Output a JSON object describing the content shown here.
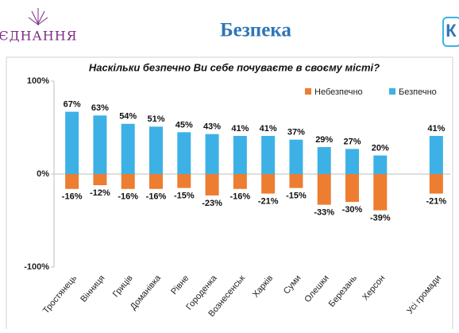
{
  "header": {
    "logo": "ЄДНАННЯ",
    "title": "Безпека",
    "right_logo": "К"
  },
  "chart_data": {
    "type": "bar",
    "title": "Наскільки безпечно Ви себе почуваєте в своєму місті?",
    "categories": [
      "Тростянець",
      "Вінниця",
      "Гриців",
      "Доманівка",
      "Рівне",
      "Городенка",
      "Вознесенськ",
      "Харків",
      "Суми",
      "Олешки",
      "Березань",
      "Херсон",
      null,
      "Усі громади"
    ],
    "series": [
      {
        "name": "Небезпечно",
        "color": "#ED7D31",
        "values": [
          -16,
          -12,
          -16,
          -16,
          -15,
          -23,
          -16,
          -21,
          -15,
          -33,
          -30,
          -39,
          null,
          -21
        ],
        "value_labels": [
          "-16%",
          "-12%",
          "-16%",
          "-16%",
          "-15%",
          "-23%",
          "-16%",
          "-21%",
          "-15%",
          "-33%",
          "-30%",
          "-39%",
          null,
          "-21%"
        ]
      },
      {
        "name": "Безпечно",
        "color": "#3DB1E6",
        "values": [
          67,
          63,
          54,
          51,
          45,
          43,
          41,
          41,
          37,
          29,
          27,
          20,
          null,
          41
        ],
        "value_labels": [
          "67%",
          "63%",
          "54%",
          "51%",
          "45%",
          "43%",
          "41%",
          "41%",
          "37%",
          "29%",
          "27%",
          "20%",
          null,
          "41%"
        ]
      }
    ],
    "ylim": [
      -100,
      100
    ],
    "yticks": [
      {
        "value": -100,
        "label": "-100%"
      },
      {
        "value": 0,
        "label": "0%"
      },
      {
        "value": 100,
        "label": "100%"
      }
    ],
    "grid": false,
    "legend": "upper right"
  }
}
